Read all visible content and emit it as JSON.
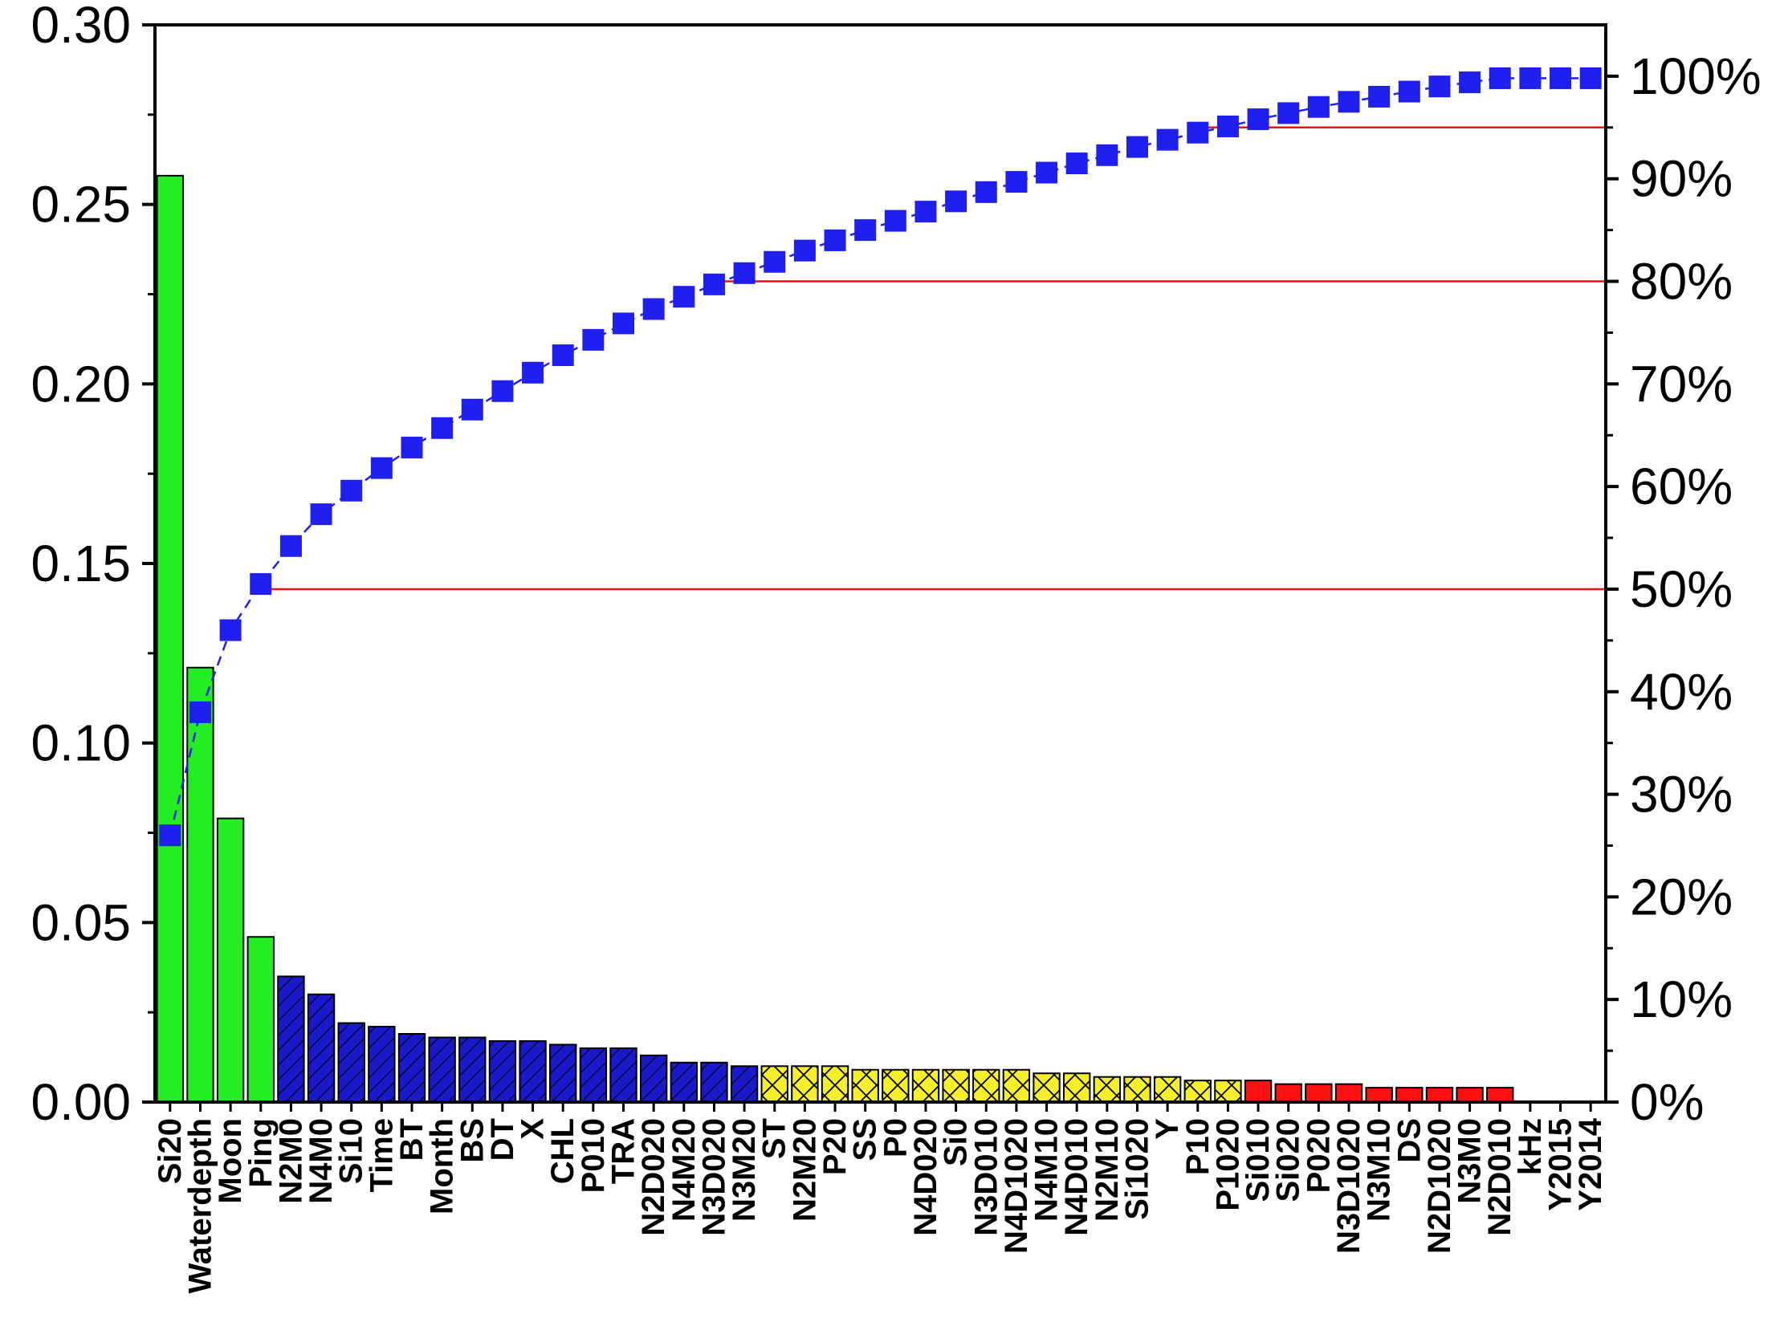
{
  "chart_data": {
    "type": "bar",
    "title": "",
    "xlabel": "",
    "ylabel": "",
    "ylabel_right": "",
    "ylim": [
      0,
      0.3
    ],
    "ylim_right": [
      0,
      105
    ],
    "y_ticks": [
      0.0,
      0.05,
      0.1,
      0.15,
      0.2,
      0.25,
      0.3
    ],
    "y_tick_labels": [
      "0.00",
      "0.05",
      "0.10",
      "0.15",
      "0.20",
      "0.25",
      "0.30"
    ],
    "y2_ticks": [
      0,
      10,
      20,
      30,
      40,
      50,
      60,
      70,
      80,
      90,
      100
    ],
    "y2_tick_labels": [
      "0%",
      "10%",
      "20%",
      "30%",
      "40%",
      "50%",
      "60%",
      "70%",
      "80%",
      "90%",
      "100%"
    ],
    "grid": false,
    "legend": "none",
    "categories": [
      "Si20",
      "Waterdepth",
      "Moon",
      "Ping",
      "N2M0",
      "N4M0",
      "Si10",
      "Time",
      "BT",
      "Month",
      "BS",
      "DT",
      "X",
      "CHL",
      "P010",
      "TRA",
      "N2D020",
      "N4M20",
      "N3D020",
      "N3M20",
      "ST",
      "N2M20",
      "P20",
      "SS",
      "P0",
      "N4D020",
      "Si0",
      "N3D010",
      "N4D1020",
      "N4M10",
      "N4D010",
      "N2M10",
      "Si1020",
      "Y",
      "P10",
      "P1020",
      "Si010",
      "Si020",
      "P020",
      "N3D1020",
      "N3M10",
      "DS",
      "N2D1020",
      "N3M0",
      "N2D010",
      "kHz",
      "Y2015",
      "Y2014"
    ],
    "values": [
      0.258,
      0.121,
      0.079,
      0.046,
      0.035,
      0.03,
      0.022,
      0.021,
      0.019,
      0.018,
      0.018,
      0.017,
      0.017,
      0.016,
      0.015,
      0.015,
      0.013,
      0.011,
      0.011,
      0.01,
      0.01,
      0.01,
      0.01,
      0.009,
      0.009,
      0.009,
      0.009,
      0.009,
      0.009,
      0.008,
      0.008,
      0.007,
      0.007,
      0.007,
      0.006,
      0.006,
      0.006,
      0.005,
      0.005,
      0.005,
      0.004,
      0.004,
      0.004,
      0.004,
      0.004,
      0.0,
      0.0,
      0.0
    ],
    "groups": [
      "green",
      "green",
      "green",
      "green",
      "blue",
      "blue",
      "blue",
      "blue",
      "blue",
      "blue",
      "blue",
      "blue",
      "blue",
      "blue",
      "blue",
      "blue",
      "blue",
      "blue",
      "blue",
      "blue",
      "yellow",
      "yellow",
      "yellow",
      "yellow",
      "yellow",
      "yellow",
      "yellow",
      "yellow",
      "yellow",
      "yellow",
      "yellow",
      "yellow",
      "yellow",
      "yellow",
      "yellow",
      "yellow",
      "red",
      "red",
      "red",
      "red",
      "red",
      "red",
      "red",
      "red",
      "red",
      "none",
      "none",
      "none"
    ],
    "cumulative_percent": [
      26.0,
      38.0,
      46.0,
      50.5,
      54.2,
      57.3,
      59.6,
      61.8,
      63.8,
      65.7,
      67.5,
      69.3,
      71.1,
      72.8,
      74.3,
      75.9,
      77.3,
      78.5,
      79.7,
      80.8,
      81.9,
      83.0,
      84.0,
      85.0,
      85.9,
      86.8,
      87.8,
      88.7,
      89.7,
      90.6,
      91.5,
      92.3,
      93.1,
      93.8,
      94.5,
      95.1,
      95.8,
      96.4,
      97.0,
      97.5,
      98.0,
      98.5,
      99.0,
      99.4,
      99.8,
      99.8,
      99.8,
      99.8
    ],
    "reference_lines_percent": [
      50,
      80,
      95
    ],
    "colors": {
      "green": "#22ee22",
      "blue": "#1a1acc",
      "yellow": "#f5ef2a",
      "red": "#ff1111",
      "marker": "#1f1ff0",
      "refline": "#ee1111"
    }
  }
}
